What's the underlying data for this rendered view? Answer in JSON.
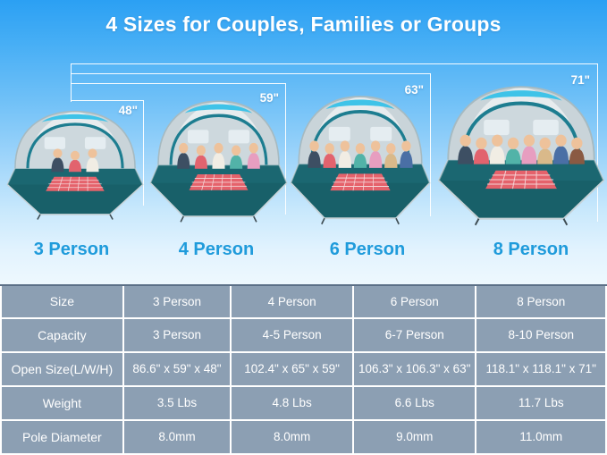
{
  "title": "4 Sizes for Couples, Families or Groups",
  "colors": {
    "label_blue": "#1f9bdb",
    "table_bg": "#8c9fb3",
    "table_text": "#ffffff",
    "floor_teal": "#186069",
    "canopy_cyan": "#3fc3e8",
    "sky_top": "#2ba0f3"
  },
  "tents": [
    {
      "name": "3 Person",
      "height_label": "48\"",
      "people": 3
    },
    {
      "name": "4 Person",
      "height_label": "59\"",
      "people": 5
    },
    {
      "name": "6 Person",
      "height_label": "63\"",
      "people": 7
    },
    {
      "name": "8 Person",
      "height_label": "71\"",
      "people": 8
    }
  ],
  "table": {
    "rows": [
      {
        "label": "Size",
        "values": [
          "3 Person",
          "4 Person",
          "6 Person",
          "8 Person"
        ]
      },
      {
        "label": "Capacity",
        "values": [
          "3 Person",
          "4-5 Person",
          "6-7 Person",
          "8-10 Person"
        ]
      },
      {
        "label": "Open Size(L/W/H)",
        "values": [
          "86.6\" x 59\" x 48\"",
          "102.4\" x 65\" x 59\"",
          "106.3\" x 106.3\" x 63\"",
          "118.1\" x 118.1\" x 71\""
        ]
      },
      {
        "label": "Weight",
        "values": [
          "3.5 Lbs",
          "4.8 Lbs",
          "6.6 Lbs",
          "11.7 Lbs"
        ]
      },
      {
        "label": "Pole Diameter",
        "values": [
          "8.0mm",
          "8.0mm",
          "9.0mm",
          "11.0mm"
        ]
      }
    ]
  }
}
